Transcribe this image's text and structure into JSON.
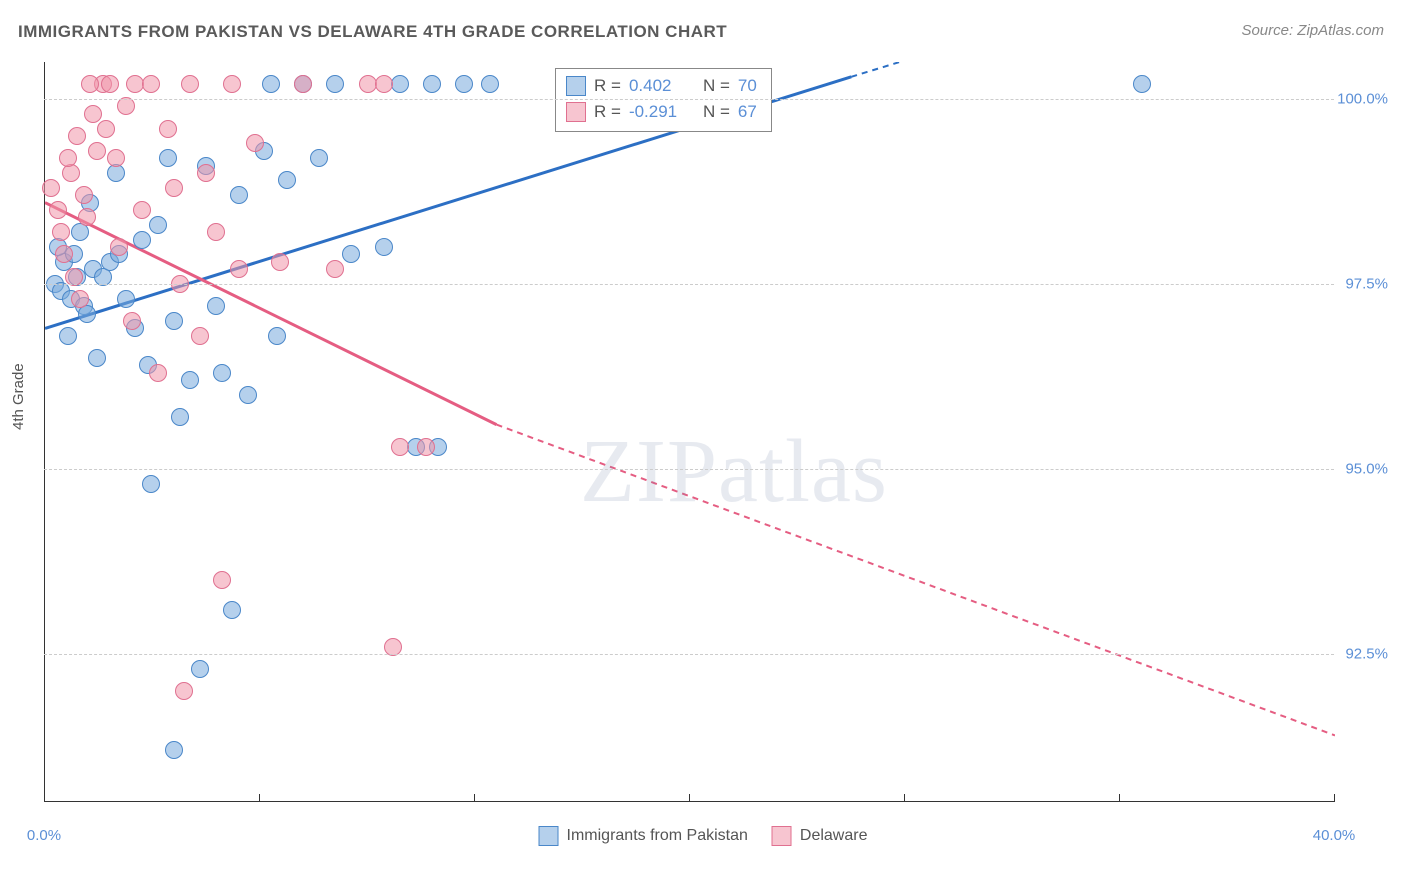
{
  "title": "IMMIGRANTS FROM PAKISTAN VS DELAWARE 4TH GRADE CORRELATION CHART",
  "source": "Source: ZipAtlas.com",
  "ylabel": "4th Grade",
  "watermark_a": "ZIP",
  "watermark_b": "atlas",
  "chart": {
    "type": "scatter",
    "xlim": [
      0,
      40
    ],
    "ylim": [
      90.5,
      100.5
    ],
    "xtick_labels": [
      "0.0%",
      "40.0%"
    ],
    "xtick_positions": [
      0,
      40
    ],
    "xtick_minor": [
      0,
      6.67,
      13.33,
      20,
      26.67,
      33.33,
      40
    ],
    "ytick_labels": [
      "92.5%",
      "95.0%",
      "97.5%",
      "100.0%"
    ],
    "ytick_positions": [
      92.5,
      95.0,
      97.5,
      100.0
    ],
    "marker_radius": 9,
    "background_color": "#ffffff",
    "grid_color": "#cccccc",
    "colors": {
      "blue_fill": "rgba(120,170,220,0.55)",
      "blue_stroke": "#4a87c9",
      "pink_fill": "rgba(240,150,170,0.55)",
      "pink_stroke": "#e07090",
      "blue_line": "#2c6fc4",
      "pink_line": "#e55d82"
    },
    "series": [
      {
        "name": "Immigrants from Pakistan",
        "color_key": "blue",
        "R": "0.402",
        "N": "70",
        "trend": {
          "x1": 0,
          "y1": 96.9,
          "x2": 25,
          "y2": 100.3,
          "x2_ext": 40,
          "y2_ext": 102.3
        },
        "points": [
          [
            0.3,
            97.5
          ],
          [
            0.5,
            97.4
          ],
          [
            0.8,
            97.3
          ],
          [
            1.0,
            97.6
          ],
          [
            0.6,
            97.8
          ],
          [
            1.2,
            97.2
          ],
          [
            0.4,
            98.0
          ],
          [
            0.9,
            97.9
          ],
          [
            1.5,
            97.7
          ],
          [
            1.3,
            97.1
          ],
          [
            1.8,
            97.6
          ],
          [
            2.0,
            97.8
          ],
          [
            0.7,
            96.8
          ],
          [
            1.1,
            98.2
          ],
          [
            2.3,
            97.9
          ],
          [
            1.6,
            96.5
          ],
          [
            2.8,
            96.9
          ],
          [
            3.0,
            98.1
          ],
          [
            2.5,
            97.3
          ],
          [
            1.4,
            98.6
          ],
          [
            2.2,
            99.0
          ],
          [
            3.5,
            98.3
          ],
          [
            3.2,
            96.4
          ],
          [
            4.0,
            97.0
          ],
          [
            3.8,
            99.2
          ],
          [
            4.5,
            96.2
          ],
          [
            5.0,
            99.1
          ],
          [
            5.5,
            96.3
          ],
          [
            4.2,
            95.7
          ],
          [
            5.3,
            97.2
          ],
          [
            6.0,
            98.7
          ],
          [
            6.8,
            99.3
          ],
          [
            7.0,
            100.2
          ],
          [
            8.0,
            100.2
          ],
          [
            7.5,
            98.9
          ],
          [
            8.5,
            99.2
          ],
          [
            9.0,
            100.2
          ],
          [
            9.5,
            97.9
          ],
          [
            7.2,
            96.8
          ],
          [
            6.3,
            96.0
          ],
          [
            5.8,
            93.1
          ],
          [
            4.8,
            92.3
          ],
          [
            4.0,
            91.2
          ],
          [
            3.3,
            94.8
          ],
          [
            10.5,
            98.0
          ],
          [
            11.0,
            100.2
          ],
          [
            12.0,
            100.2
          ],
          [
            13.0,
            100.2
          ],
          [
            13.8,
            100.2
          ],
          [
            12.2,
            95.3
          ],
          [
            11.5,
            95.3
          ],
          [
            34.0,
            100.2
          ],
          [
            18.0,
            100.2
          ],
          [
            17.0,
            100.2
          ]
        ]
      },
      {
        "name": "Delaware",
        "color_key": "pink",
        "R": "-0.291",
        "N": "67",
        "trend": {
          "x1": 0,
          "y1": 98.6,
          "x2": 14,
          "y2": 95.6,
          "x2_ext": 40,
          "y2_ext": 91.4
        },
        "points": [
          [
            0.2,
            98.8
          ],
          [
            0.5,
            98.2
          ],
          [
            0.8,
            99.0
          ],
          [
            1.0,
            99.5
          ],
          [
            1.2,
            98.7
          ],
          [
            0.6,
            97.9
          ],
          [
            1.5,
            99.8
          ],
          [
            1.8,
            100.2
          ],
          [
            2.0,
            100.2
          ],
          [
            2.2,
            99.2
          ],
          [
            1.3,
            98.4
          ],
          [
            0.9,
            97.6
          ],
          [
            2.5,
            99.9
          ],
          [
            2.8,
            100.2
          ],
          [
            3.0,
            98.5
          ],
          [
            3.3,
            100.2
          ],
          [
            1.6,
            99.3
          ],
          [
            0.4,
            98.5
          ],
          [
            2.3,
            98.0
          ],
          [
            1.1,
            97.3
          ],
          [
            3.8,
            99.6
          ],
          [
            4.0,
            98.8
          ],
          [
            4.5,
            100.2
          ],
          [
            4.2,
            97.5
          ],
          [
            5.0,
            99.0
          ],
          [
            5.3,
            98.2
          ],
          [
            5.8,
            100.2
          ],
          [
            6.0,
            97.7
          ],
          [
            4.8,
            96.8
          ],
          [
            6.5,
            99.4
          ],
          [
            7.3,
            97.8
          ],
          [
            8.0,
            100.2
          ],
          [
            9.0,
            97.7
          ],
          [
            10.0,
            100.2
          ],
          [
            10.5,
            100.2
          ],
          [
            11.0,
            95.3
          ],
          [
            11.8,
            95.3
          ],
          [
            5.5,
            93.5
          ],
          [
            4.3,
            92.0
          ],
          [
            3.5,
            96.3
          ],
          [
            2.7,
            97.0
          ],
          [
            10.8,
            92.6
          ],
          [
            1.9,
            99.6
          ],
          [
            1.4,
            100.2
          ],
          [
            0.7,
            99.2
          ]
        ]
      }
    ]
  },
  "stats_box": {
    "rows": [
      {
        "swatch": "blue",
        "r_label": "R =",
        "r_val": "0.402",
        "n_label": "N =",
        "n_val": "70"
      },
      {
        "swatch": "pink",
        "r_label": "R =",
        "r_val": "-0.291",
        "n_label": "N =",
        "n_val": "67"
      }
    ]
  },
  "bottom_legend": [
    {
      "swatch": "blue",
      "label": "Immigrants from Pakistan"
    },
    {
      "swatch": "pink",
      "label": "Delaware"
    }
  ]
}
